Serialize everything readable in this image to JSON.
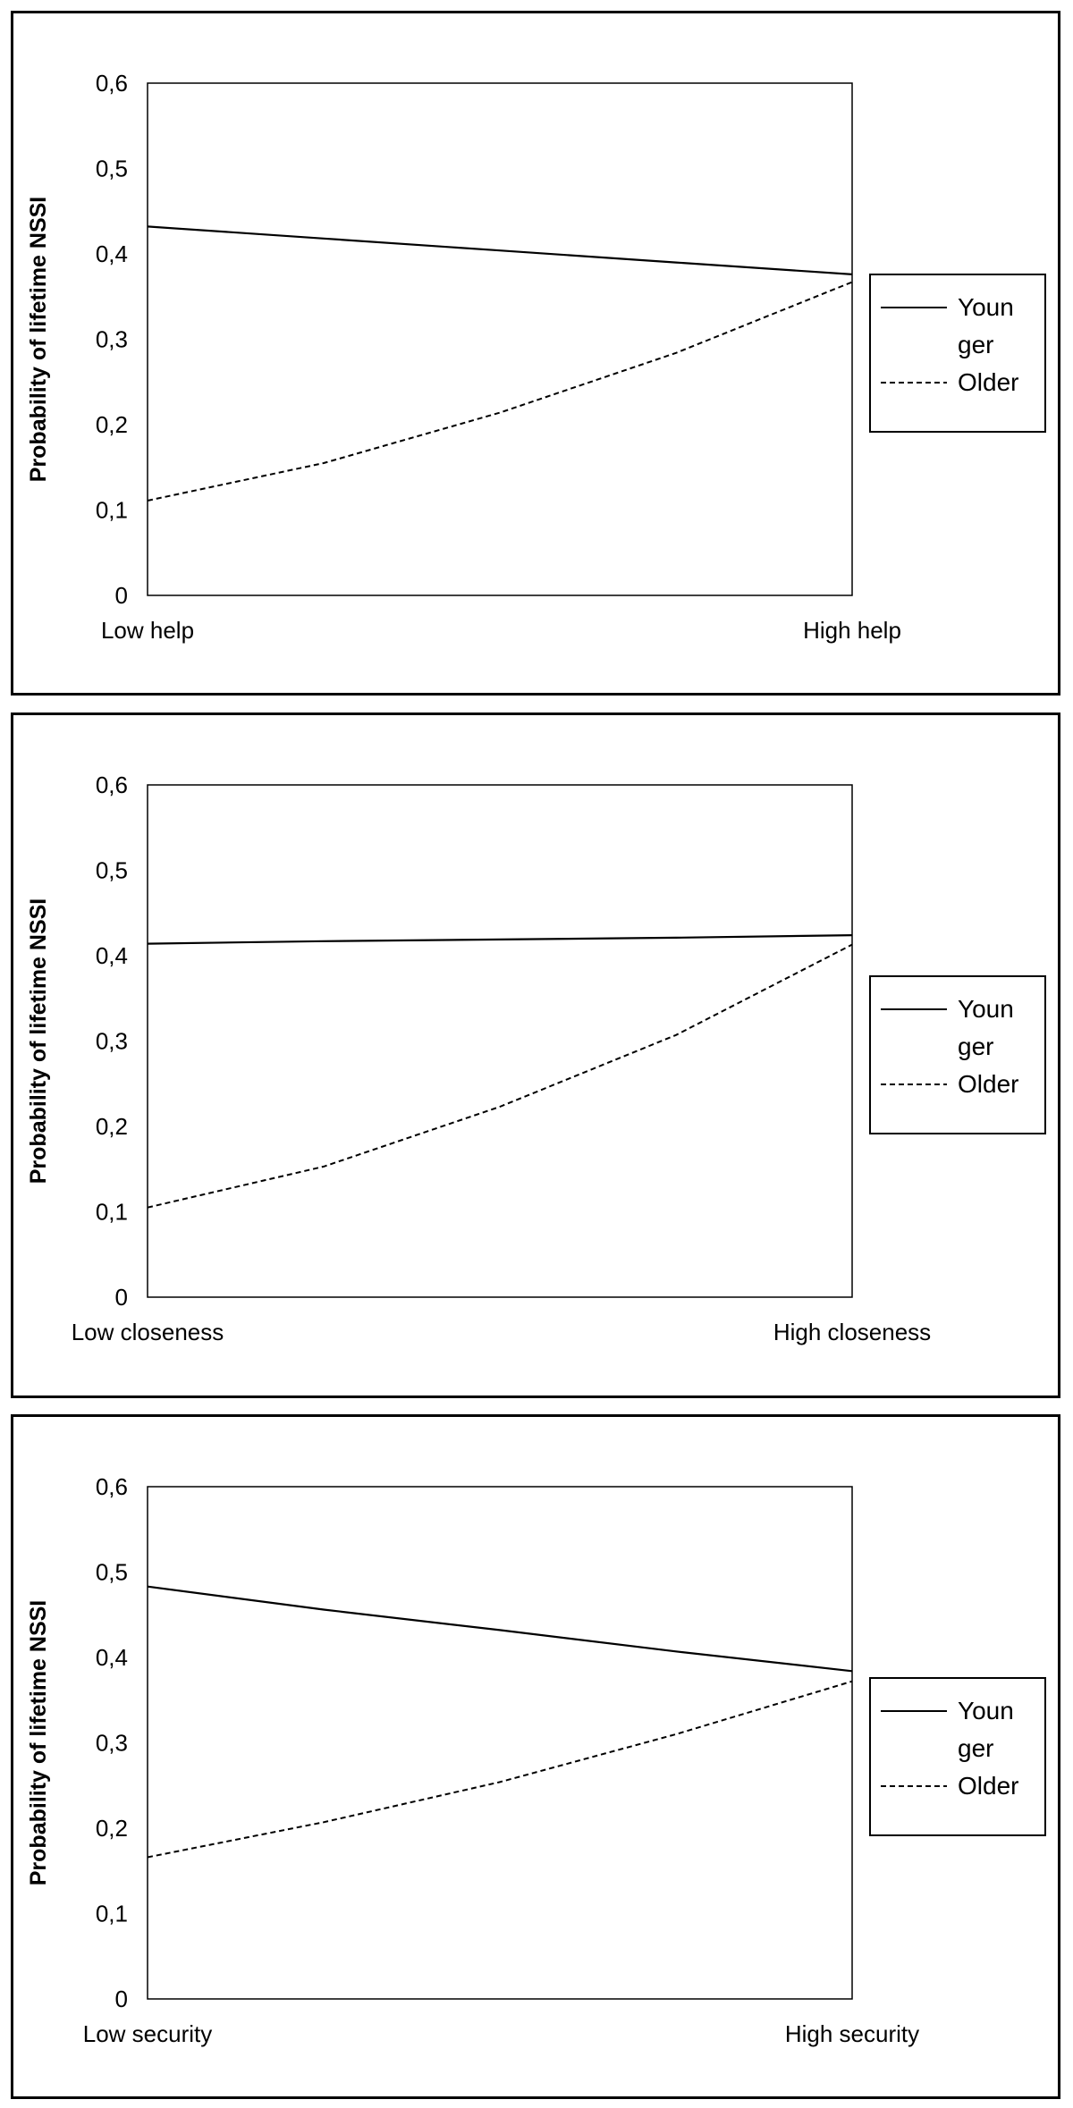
{
  "chart_data": [
    {
      "type": "line",
      "ylabel": "Probability of lifetime NSSI",
      "ylim": [
        0,
        0.6
      ],
      "yticks": [
        "0",
        "0,1",
        "0,2",
        "0,3",
        "0,4",
        "0,5",
        "0,6"
      ],
      "categories": [
        "Low help",
        "High help"
      ],
      "legend": {
        "placement": "right",
        "entries": [
          {
            "lines": [
              "Youn",
              "ger"
            ],
            "style": "solid"
          },
          {
            "lines": [
              "Older"
            ],
            "style": "dashed"
          }
        ]
      },
      "series": [
        {
          "name": "Younger",
          "style": "solid",
          "x": [
            0,
            0.25,
            0.5,
            0.75,
            1
          ],
          "values": [
            0.432,
            0.418,
            0.404,
            0.39,
            0.376
          ]
        },
        {
          "name": "Older",
          "style": "dashed",
          "x": [
            0,
            0.25,
            0.5,
            0.75,
            1
          ],
          "values": [
            0.111,
            0.155,
            0.214,
            0.284,
            0.367
          ]
        }
      ]
    },
    {
      "type": "line",
      "ylabel": "Probability of lifetime NSSI",
      "ylim": [
        0,
        0.6
      ],
      "yticks": [
        "0",
        "0,1",
        "0,2",
        "0,3",
        "0,4",
        "0,5",
        "0,6"
      ],
      "categories": [
        "Low closeness",
        "High closeness"
      ],
      "legend": {
        "placement": "right",
        "entries": [
          {
            "lines": [
              "Youn",
              "ger"
            ],
            "style": "solid"
          },
          {
            "lines": [
              "Older"
            ],
            "style": "dashed"
          }
        ]
      },
      "series": [
        {
          "name": "Younger",
          "style": "solid",
          "x": [
            0,
            0.25,
            0.5,
            0.75,
            1
          ],
          "values": [
            0.414,
            0.417,
            0.419,
            0.421,
            0.424
          ]
        },
        {
          "name": "Older",
          "style": "dashed",
          "x": [
            0,
            0.25,
            0.5,
            0.75,
            1
          ],
          "values": [
            0.105,
            0.153,
            0.223,
            0.307,
            0.413
          ]
        }
      ]
    },
    {
      "type": "line",
      "ylabel": "Probability of lifetime NSSI",
      "ylim": [
        0,
        0.6
      ],
      "yticks": [
        "0",
        "0,1",
        "0,2",
        "0,3",
        "0,4",
        "0,5",
        "0,6"
      ],
      "categories": [
        "Low security",
        "High security"
      ],
      "legend": {
        "placement": "right",
        "entries": [
          {
            "lines": [
              "Youn",
              "ger"
            ],
            "style": "solid"
          },
          {
            "lines": [
              "Older"
            ],
            "style": "dashed"
          }
        ]
      },
      "series": [
        {
          "name": "Younger",
          "style": "solid",
          "x": [
            0,
            0.25,
            0.5,
            0.75,
            1
          ],
          "values": [
            0.483,
            0.456,
            0.432,
            0.407,
            0.384
          ]
        },
        {
          "name": "Older",
          "style": "dashed",
          "x": [
            0,
            0.25,
            0.5,
            0.75,
            1
          ],
          "values": [
            0.166,
            0.207,
            0.254,
            0.31,
            0.372
          ]
        }
      ]
    }
  ]
}
